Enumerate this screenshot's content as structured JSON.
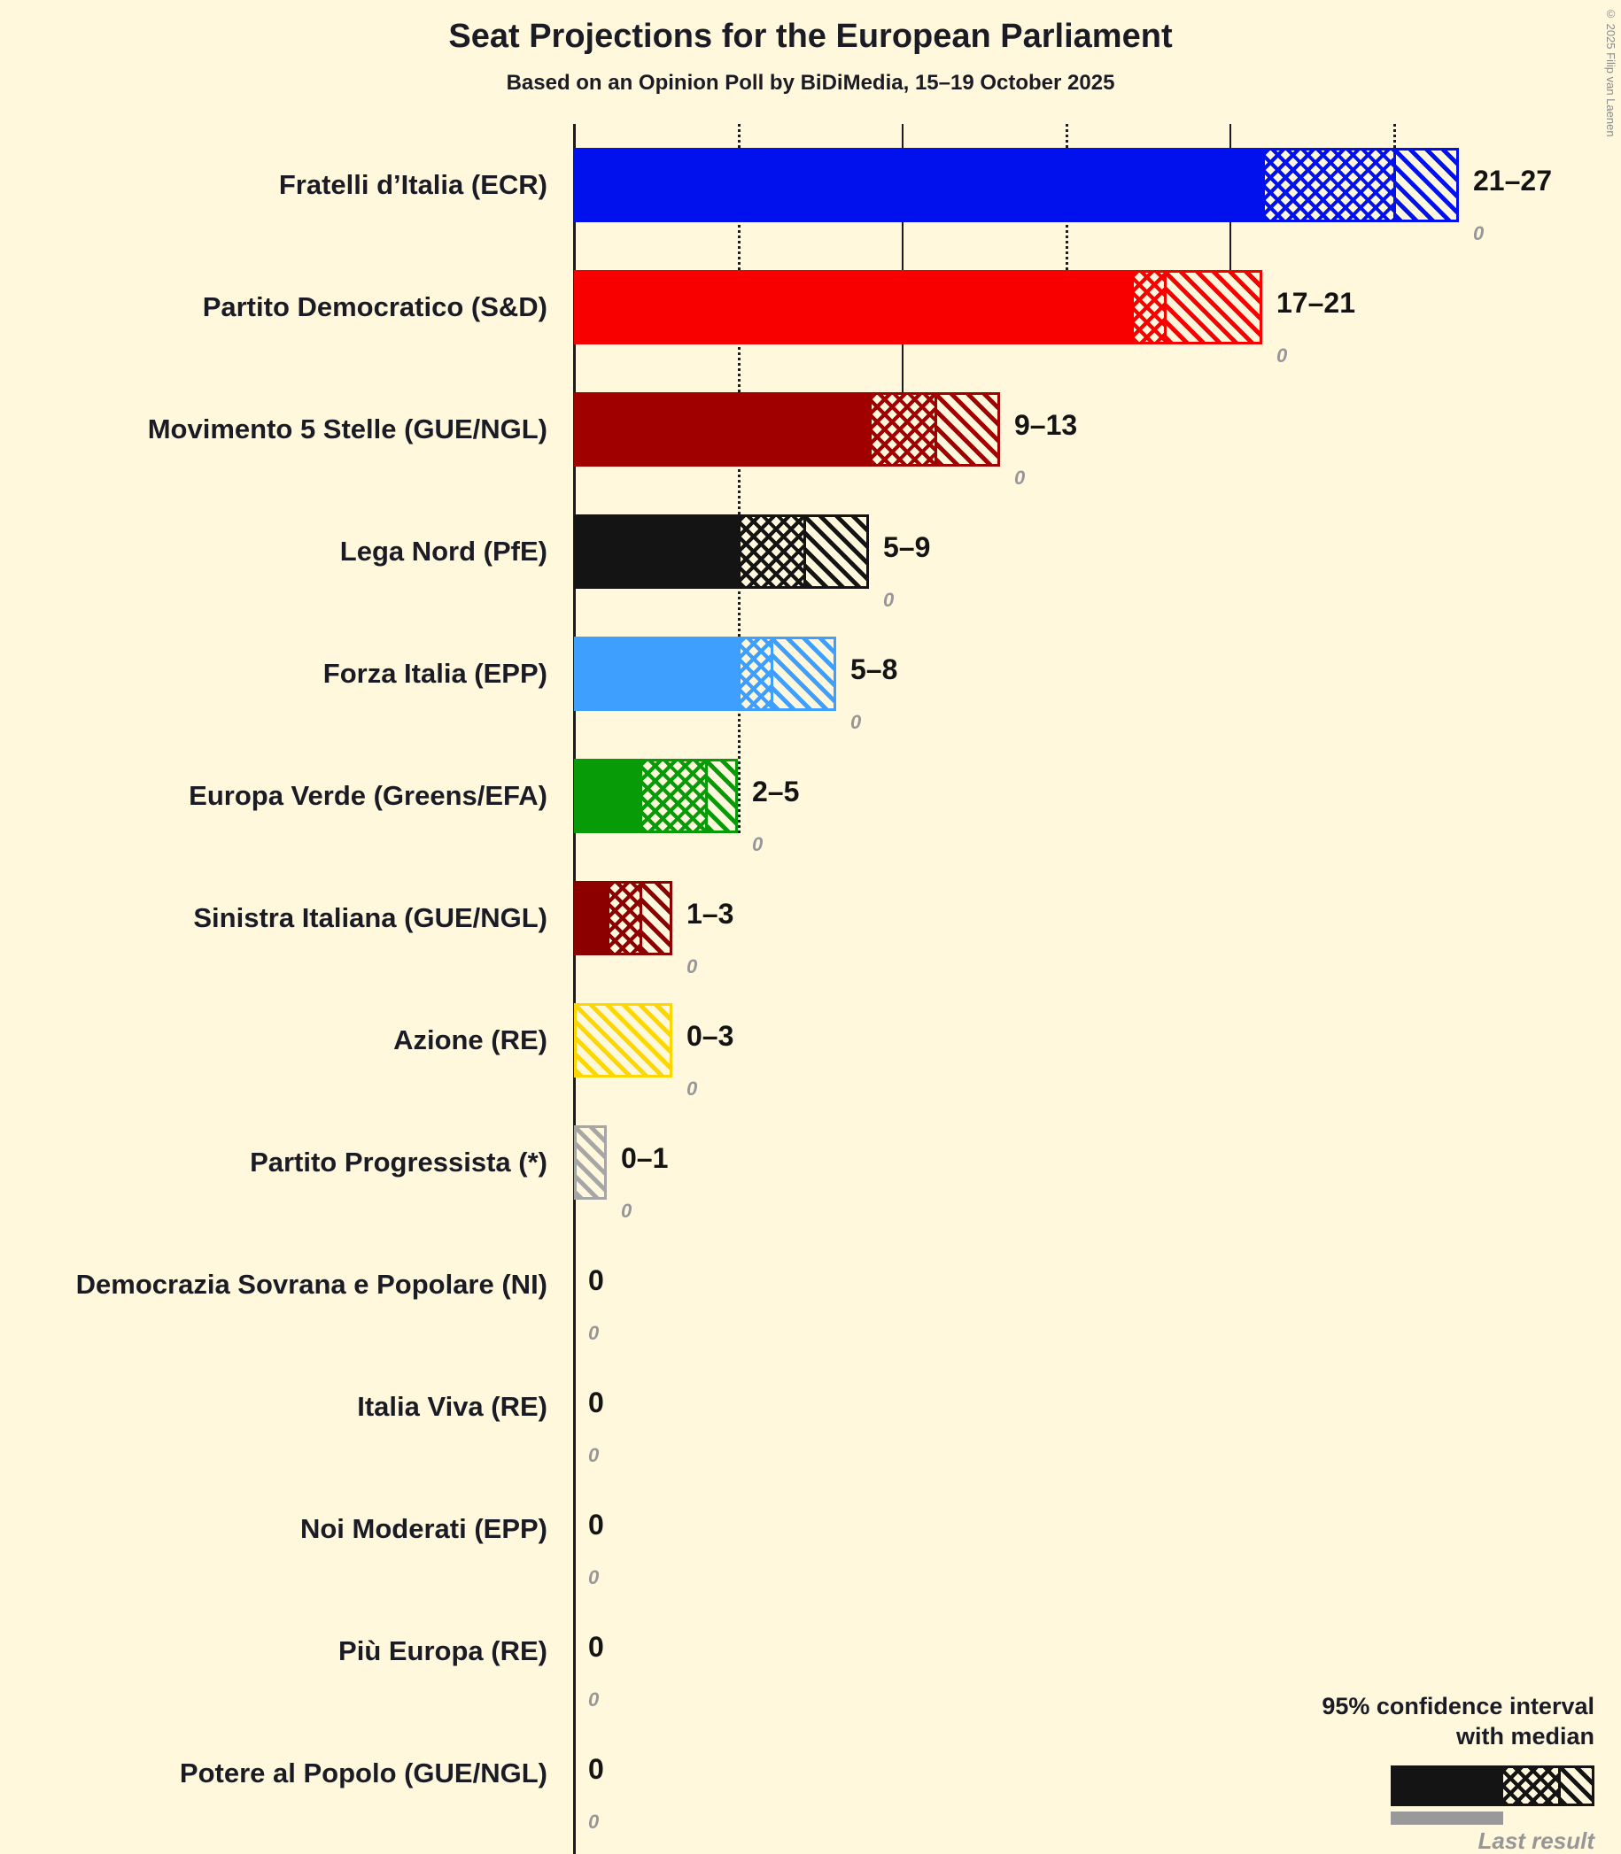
{
  "title": "Seat Projections for the European Parliament",
  "subtitle": "Based on an Opinion Poll by BiDiMedia, 15–19 October 2025",
  "copyright": "© 2025 Filip van Laenen",
  "legend": {
    "ci_line1": "95% confidence interval",
    "ci_line2": "with median",
    "last_result": "Last result"
  },
  "colors": {
    "background": "#FFF8DC",
    "text": "#1b1b26",
    "last_result_gray": "#979797",
    "legend_black": "#141414"
  },
  "chart_data": {
    "type": "bar",
    "orientation": "horizontal",
    "title": "Seat Projections for the European Parliament",
    "subtitle": "Based on an Opinion Poll by BiDiMedia, 15–19 October 2025",
    "x_axis": {
      "min": 0,
      "max": 27,
      "gridlines": [
        {
          "seats": 5,
          "style": "dotted"
        },
        {
          "seats": 10,
          "style": "solid"
        },
        {
          "seats": 15,
          "style": "dotted"
        },
        {
          "seats": 20,
          "style": "solid"
        },
        {
          "seats": 25,
          "style": "dotted"
        }
      ]
    },
    "value_semantics": "95% confidence interval (low–high) with median; gray italic number is last result",
    "parties": [
      {
        "label": "Fratelli d’Italia (ECR)",
        "color": "#0011EE",
        "ci_low": 21,
        "median": 25,
        "ci_high": 27,
        "range_label": "21–27",
        "last_result": "0"
      },
      {
        "label": "Partito Democratico (S&D)",
        "color": "#F80000",
        "ci_low": 17,
        "median": 18,
        "ci_high": 21,
        "range_label": "17–21",
        "last_result": "0"
      },
      {
        "label": "Movimento 5 Stelle (GUE/NGL)",
        "color": "#A00000",
        "ci_low": 9,
        "median": 11,
        "ci_high": 13,
        "range_label": "9–13",
        "last_result": "0"
      },
      {
        "label": "Lega Nord (PfE)",
        "color": "#141414",
        "ci_low": 5,
        "median": 7,
        "ci_high": 9,
        "range_label": "5–9",
        "last_result": "0"
      },
      {
        "label": "Forza Italia (EPP)",
        "color": "#3F9FFF",
        "ci_low": 5,
        "median": 6,
        "ci_high": 8,
        "range_label": "5–8",
        "last_result": "0"
      },
      {
        "label": "Europa Verde (Greens/EFA)",
        "color": "#089B08",
        "ci_low": 2,
        "median": 4,
        "ci_high": 5,
        "range_label": "2–5",
        "last_result": "0"
      },
      {
        "label": "Sinistra Italiana (GUE/NGL)",
        "color": "#8C0000",
        "ci_low": 1,
        "median": 2,
        "ci_high": 3,
        "range_label": "1–3",
        "last_result": "0"
      },
      {
        "label": "Azione (RE)",
        "color": "#FFD700",
        "ci_low": 0,
        "median": 0,
        "ci_high": 3,
        "range_label": "0–3",
        "last_result": "0"
      },
      {
        "label": "Partito Progressista (*)",
        "color": "#A6A6A6",
        "ci_low": 0,
        "median": 0,
        "ci_high": 1,
        "range_label": "0–1",
        "last_result": "0"
      },
      {
        "label": "Democrazia Sovrana e Popolare (NI)",
        "color": "#1b1b26",
        "ci_low": 0,
        "median": 0,
        "ci_high": 0,
        "range_label": "0",
        "last_result": "0"
      },
      {
        "label": "Italia Viva (RE)",
        "color": "#1b1b26",
        "ci_low": 0,
        "median": 0,
        "ci_high": 0,
        "range_label": "0",
        "last_result": "0"
      },
      {
        "label": "Noi Moderati (EPP)",
        "color": "#1b1b26",
        "ci_low": 0,
        "median": 0,
        "ci_high": 0,
        "range_label": "0",
        "last_result": "0"
      },
      {
        "label": "Più Europa (RE)",
        "color": "#1b1b26",
        "ci_low": 0,
        "median": 0,
        "ci_high": 0,
        "range_label": "0",
        "last_result": "0"
      },
      {
        "label": "Potere al Popolo (GUE/NGL)",
        "color": "#1b1b26",
        "ci_low": 0,
        "median": 0,
        "ci_high": 0,
        "range_label": "0",
        "last_result": "0"
      }
    ]
  }
}
